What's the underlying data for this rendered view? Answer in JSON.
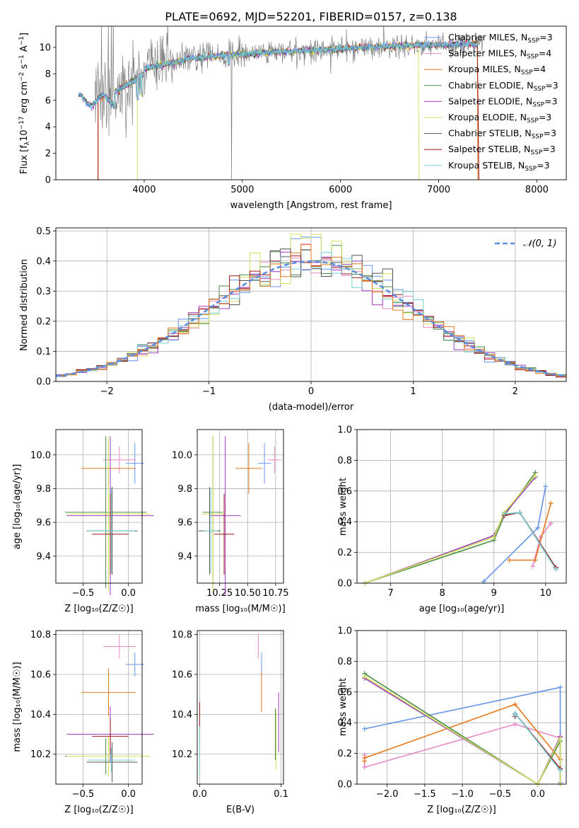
{
  "colors": {
    "chabrier_miles": "#6495ed",
    "salpeter_miles": "#e887c4",
    "kroupa_miles": "#e8791c",
    "chabrier_elodie": "#4a8c45",
    "salpeter_elodie": "#9d3dc0",
    "kroupa_elodie": "#d3e25c",
    "chabrier_stelib": "#555555",
    "salpeter_stelib": "#a01515",
    "kroupa_stelib": "#77cfd5",
    "gaussian": "#5d8bdd",
    "grid": "#b0b0b0"
  },
  "legend_labels": {
    "l0": "Chabrier MILES, N",
    "l1": "Salpeter MILES, N",
    "l2": "Kroupa MILES, N",
    "l3": "Chabrier ELODIE, N",
    "l4": "Salpeter ELODIE, N",
    "l5": "Kroupa ELODIE, N",
    "l6": "Chabrier STELIB, N",
    "l7": "Salpeter STELIB, N",
    "l8": "Kroupa STELIB, N",
    "sub": "SSP",
    "n0": "=3",
    "n1": "=4",
    "n2": "=4",
    "n3": "=3",
    "n4": "=3",
    "n5": "=3",
    "n6": "=3",
    "n7": "=3",
    "n8": "=3"
  },
  "chart_data": [
    {
      "type": "line",
      "title": "PLATE=0692, MJD=52201, FIBERID=0157, z=0.138",
      "xlabel": "wavelength [Angstrom, rest frame]",
      "ylabel_parts": {
        "a": "Flux [f",
        "b": "λ",
        "c": "10",
        "d": "−17",
        "e": " erg cm",
        "f": "−2",
        "g": " s",
        "h": "−1",
        "i": " A",
        "j": "−1",
        "k": "]"
      },
      "xlim": [
        3100,
        8300
      ],
      "ylim": [
        0,
        11.6
      ],
      "xticks": [
        "4000",
        "5000",
        "6000",
        "7000",
        "8000"
      ],
      "yticks": [
        "0",
        "2",
        "4",
        "6",
        "8",
        "10"
      ],
      "series": [
        "Chabrier MILES",
        "Salpeter MILES",
        "Kroupa MILES",
        "Chabrier ELODIE",
        "Salpeter ELODIE",
        "Kroupa ELODIE",
        "Chabrier STELIB",
        "Salpeter STELIB",
        "Kroupa STELIB"
      ],
      "n_ssp": [
        3,
        4,
        4,
        3,
        3,
        3,
        3,
        3,
        3
      ],
      "legend": "top-right"
    },
    {
      "type": "histogram",
      "xlabel": "(data-model)/error",
      "ylabel": "Normed distribution",
      "xlim": [
        -2.5,
        2.5
      ],
      "ylim": [
        0,
        0.51
      ],
      "xticks": [
        "−2",
        "−1",
        "0",
        "1",
        "2"
      ],
      "yticks": [
        "0.0",
        "0.1",
        "0.2",
        "0.3",
        "0.4",
        "0.5"
      ],
      "bin_width": 0.1,
      "reference": "𝒩(0, 1)",
      "legend": "top-right"
    },
    {
      "type": "errorbar",
      "xlabel": "Z [log₁₀(Z/Z☉)]",
      "ylabel": "age  [log₁₀(age/yr)]",
      "xlim": [
        -0.8,
        0.15
      ],
      "ylim": [
        9.24,
        10.15
      ],
      "xticks": [
        "−0.5",
        "0.0"
      ],
      "yticks": [
        "9.4",
        "9.6",
        "9.8",
        "10.0"
      ],
      "points": [
        {
          "x": 0.07,
          "xerr": 0.1,
          "y": 9.95,
          "yerr": 0.12
        },
        {
          "x": -0.1,
          "xerr": 0.18,
          "y": 9.97,
          "yerr": 0.08
        },
        {
          "x": -0.22,
          "xerr": 0.3,
          "y": 9.92,
          "yerr": 0.15
        },
        {
          "x": -0.25,
          "xerr": 0.45,
          "y": 9.66,
          "yerr": 0.45
        },
        {
          "x": -0.2,
          "xerr": 0.48,
          "y": 9.64,
          "yerr": 0.47
        },
        {
          "x": -0.22,
          "xerr": 0.46,
          "y": 9.65,
          "yerr": 0.46
        },
        {
          "x": -0.18,
          "xerr": 0.28,
          "y": 9.55,
          "yerr": 0.26
        },
        {
          "x": -0.2,
          "xerr": 0.2,
          "y": 9.53,
          "yerr": 0.24
        },
        {
          "x": -0.19,
          "xerr": 0.26,
          "y": 9.55,
          "yerr": 0.25
        }
      ]
    },
    {
      "type": "errorbar",
      "xlabel": "mass [log₁₀(M/M☉)]",
      "ylabel": "",
      "xlim": [
        10.05,
        10.82
      ],
      "ylim": [
        9.24,
        10.15
      ],
      "xticks": [
        "10.25",
        "10.50",
        "10.75"
      ],
      "yticks": [
        "9.4",
        "9.6",
        "9.8",
        "10.0"
      ],
      "points": [
        {
          "x": 10.65,
          "xerr": 0.06,
          "y": 9.95,
          "yerr": 0.12
        },
        {
          "x": 10.74,
          "xerr": 0.06,
          "y": 9.97,
          "yerr": 0.08
        },
        {
          "x": 10.51,
          "xerr": 0.12,
          "y": 9.92,
          "yerr": 0.15
        },
        {
          "x": 10.19,
          "xerr": 0.09,
          "y": 9.66,
          "yerr": 0.45
        },
        {
          "x": 10.3,
          "xerr": 0.14,
          "y": 9.64,
          "yerr": 0.47
        },
        {
          "x": 10.19,
          "xerr": 0.1,
          "y": 9.65,
          "yerr": 0.46
        },
        {
          "x": 10.16,
          "xerr": 0.1,
          "y": 9.55,
          "yerr": 0.26
        },
        {
          "x": 10.29,
          "xerr": 0.09,
          "y": 9.53,
          "yerr": 0.24
        },
        {
          "x": 10.17,
          "xerr": 0.06,
          "y": 9.55,
          "yerr": 0.25
        }
      ]
    },
    {
      "type": "line",
      "xlabel": "age  [log₁₀(age/yr)]",
      "ylabel": "mass weight",
      "xlim": [
        6.35,
        10.4
      ],
      "ylim": [
        0,
        1.0
      ],
      "xticks": [
        "7",
        "8",
        "9",
        "10"
      ],
      "yticks": [
        "0.0",
        "0.2",
        "0.4",
        "0.6",
        "0.8",
        "1.0"
      ],
      "series": [
        {
          "x": [
            8.8,
            9.85,
            10.0
          ],
          "y": [
            0.01,
            0.36,
            0.63
          ]
        },
        {
          "x": [
            9.75,
            9.9,
            10.1
          ],
          "y": [
            0.11,
            0.3,
            0.39
          ]
        },
        {
          "x": [
            9.3,
            9.8,
            10.1
          ],
          "y": [
            0.15,
            0.15,
            0.52
          ]
        },
        {
          "x": [
            6.5,
            9.0,
            9.2,
            9.8
          ],
          "y": [
            0.0,
            0.28,
            0.44,
            0.72
          ]
        },
        {
          "x": [
            6.5,
            9.0,
            9.2,
            9.8
          ],
          "y": [
            0.0,
            0.31,
            0.45,
            0.69
          ]
        },
        {
          "x": [
            6.5,
            9.0,
            9.2,
            9.8
          ],
          "y": [
            0.0,
            0.3,
            0.46,
            0.7
          ]
        },
        {
          "x": [
            9.2,
            9.5,
            10.2
          ],
          "y": [
            0.45,
            0.46,
            0.1
          ]
        },
        {
          "x": [
            9.2,
            9.5,
            10.2
          ],
          "y": [
            0.44,
            0.46,
            0.1
          ]
        },
        {
          "x": [
            9.2,
            9.5,
            10.2
          ],
          "y": [
            0.45,
            0.46,
            0.09
          ]
        }
      ]
    },
    {
      "type": "errorbar",
      "xlabel": "Z [log₁₀(Z/Z☉)]",
      "ylabel": "mass [log₁₀(M/M☉)]",
      "xlim": [
        -0.8,
        0.15
      ],
      "ylim": [
        10.05,
        10.82
      ],
      "xticks": [
        "−0.5",
        "0.0"
      ],
      "yticks": [
        "10.2",
        "10.4",
        "10.6",
        "10.8"
      ],
      "points": [
        {
          "x": 0.07,
          "xerr": 0.1,
          "y": 10.65,
          "yerr": 0.06
        },
        {
          "x": -0.1,
          "xerr": 0.18,
          "y": 10.74,
          "yerr": 0.06
        },
        {
          "x": -0.22,
          "xerr": 0.3,
          "y": 10.51,
          "yerr": 0.12
        },
        {
          "x": -0.25,
          "xerr": 0.45,
          "y": 10.19,
          "yerr": 0.09
        },
        {
          "x": -0.2,
          "xerr": 0.48,
          "y": 10.3,
          "yerr": 0.14
        },
        {
          "x": -0.22,
          "xerr": 0.46,
          "y": 10.19,
          "yerr": 0.1
        },
        {
          "x": -0.18,
          "xerr": 0.28,
          "y": 10.16,
          "yerr": 0.1
        },
        {
          "x": -0.2,
          "xerr": 0.2,
          "y": 10.29,
          "yerr": 0.09
        },
        {
          "x": -0.19,
          "xerr": 0.26,
          "y": 10.17,
          "yerr": 0.06
        }
      ]
    },
    {
      "type": "errorbar",
      "xlabel": "E(B-V)",
      "ylabel": "",
      "xlim": [
        -0.003,
        0.103
      ],
      "ylim": [
        10.05,
        10.82
      ],
      "xticks": [
        "0.0",
        "0.1"
      ],
      "yticks": [
        "10.2",
        "10.4",
        "10.6",
        "10.8"
      ],
      "points": [
        {
          "x": 0.076,
          "y": 10.65,
          "yerr": 0.06
        },
        {
          "x": 0.072,
          "y": 10.74,
          "yerr": 0.06
        },
        {
          "x": 0.076,
          "y": 10.51,
          "yerr": 0.1
        },
        {
          "x": 0.093,
          "y": 10.3,
          "yerr": 0.13
        },
        {
          "x": 0.097,
          "y": 10.36,
          "yerr": 0.15
        },
        {
          "x": 0.094,
          "y": 10.27,
          "yerr": 0.15
        },
        {
          "x": 0.0,
          "y": 10.2,
          "yerr": 0.1
        },
        {
          "x": 0.0,
          "y": 10.36,
          "yerr": 0.1
        },
        {
          "x": 0.0,
          "y": 10.22,
          "yerr": 0.12
        }
      ]
    },
    {
      "type": "line",
      "xlabel": "Z [log₁₀(Z/Z☉)]",
      "ylabel": "mass weight",
      "xlim": [
        -2.4,
        0.38
      ],
      "ylim": [
        0,
        1.0
      ],
      "xticks": [
        "−2.0",
        "−1.5",
        "−1.0",
        "−0.5",
        "0.0"
      ],
      "yticks": [
        "0.0",
        "0.2",
        "0.4",
        "0.6",
        "0.8",
        "1.0"
      ],
      "series": [
        {
          "x": [
            -2.3,
            0.3,
            0.3,
            0.3
          ],
          "y": [
            0.36,
            0.63,
            0.31,
            0.01
          ]
        },
        {
          "x": [
            -2.3,
            -2.3,
            -0.3,
            0.3
          ],
          "y": [
            0.19,
            0.11,
            0.39,
            0.3
          ]
        },
        {
          "x": [
            -2.3,
            -2.3,
            -0.3,
            0.3
          ],
          "y": [
            0.15,
            0.17,
            0.52,
            0.16
          ]
        },
        {
          "x": [
            -2.3,
            0.0,
            0.3,
            0.3
          ],
          "y": [
            0.72,
            0.0,
            0.28,
            0.0
          ]
        },
        {
          "x": [
            -2.3,
            0.0,
            0.3,
            0.3
          ],
          "y": [
            0.69,
            0.0,
            0.31,
            0.0
          ]
        },
        {
          "x": [
            -2.3,
            0.0,
            0.3,
            0.3
          ],
          "y": [
            0.7,
            0.0,
            0.3,
            0.0
          ]
        },
        {
          "x": [
            -0.3,
            -0.3,
            0.3
          ],
          "y": [
            0.45,
            0.46,
            0.1
          ]
        },
        {
          "x": [
            -0.3,
            -0.3,
            0.3
          ],
          "y": [
            0.44,
            0.46,
            0.1
          ]
        },
        {
          "x": [
            -0.3,
            -0.3,
            0.3
          ],
          "y": [
            0.45,
            0.46,
            0.09
          ]
        }
      ]
    }
  ]
}
